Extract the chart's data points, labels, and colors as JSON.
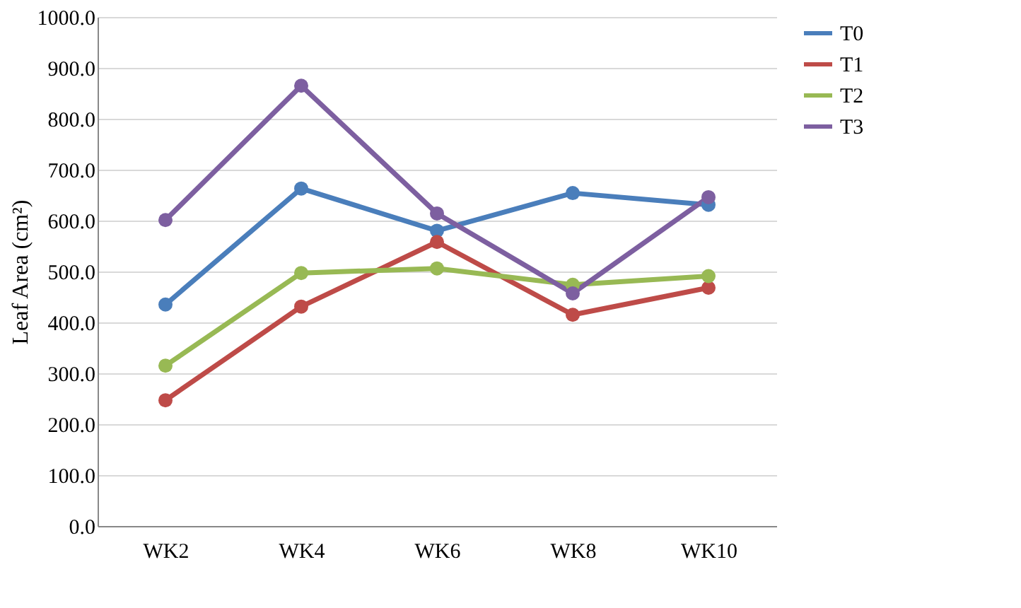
{
  "chart_data": {
    "type": "line",
    "ylabel": "Leaf Area (cm²)",
    "categories": [
      "WK2",
      "WK4",
      "WK6",
      "WK8",
      "WK10"
    ],
    "series": [
      {
        "name": "T0",
        "color": "#4a7ebb",
        "values": [
          435,
          663,
          580,
          654,
          631
        ]
      },
      {
        "name": "T1",
        "color": "#be4b48",
        "values": [
          247,
          431,
          558,
          415,
          468
        ]
      },
      {
        "name": "T2",
        "color": "#98b954",
        "values": [
          315,
          497,
          506,
          474,
          491
        ]
      },
      {
        "name": "T3",
        "color": "#7d5fa0",
        "values": [
          601,
          865,
          614,
          457,
          646
        ]
      }
    ],
    "ylim": [
      0,
      1000
    ],
    "yticks": [
      {
        "value": 0,
        "label": "0.0"
      },
      {
        "value": 100,
        "label": "100.0"
      },
      {
        "value": 200,
        "label": "200.0"
      },
      {
        "value": 300,
        "label": "300.0"
      },
      {
        "value": 400,
        "label": "400.0"
      },
      {
        "value": 500,
        "label": "500.0"
      },
      {
        "value": 600,
        "label": "600.0"
      },
      {
        "value": 700,
        "label": "700.0"
      },
      {
        "value": 800,
        "label": "800.0"
      },
      {
        "value": 900,
        "label": "900.0"
      },
      {
        "value": 1000,
        "label": "1000.0"
      }
    ],
    "grid": "y",
    "legend": "right",
    "marker": "circle",
    "line_style": "solid"
  }
}
